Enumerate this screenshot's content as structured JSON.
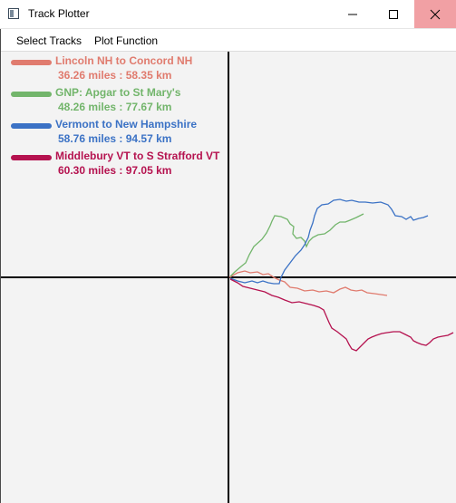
{
  "window": {
    "title": "Track Plotter",
    "minimize_icon": "minimize-icon",
    "maximize_icon": "maximize-icon",
    "close_icon": "close-icon",
    "close_color": "#f1a0a4"
  },
  "menu": {
    "items": [
      {
        "label": "Select Tracks"
      },
      {
        "label": "Plot Function"
      }
    ]
  },
  "legend": [
    {
      "name": "Lincoln NH to Concord NH",
      "distance": "36.26 miles : 58.35 km",
      "color": "#e07b6e"
    },
    {
      "name": "GNP: Apgar to St Mary's",
      "distance": "48.26 miles : 77.67 km",
      "color": "#72b56b"
    },
    {
      "name": "Vermont to New Hampshire",
      "distance": "58.76 miles : 94.57 km",
      "color": "#3b72c5"
    },
    {
      "name": "Middlebury VT to S Strafford VT",
      "distance": "60.30 miles : 97.05 km",
      "color": "#b5124f"
    }
  ]
}
